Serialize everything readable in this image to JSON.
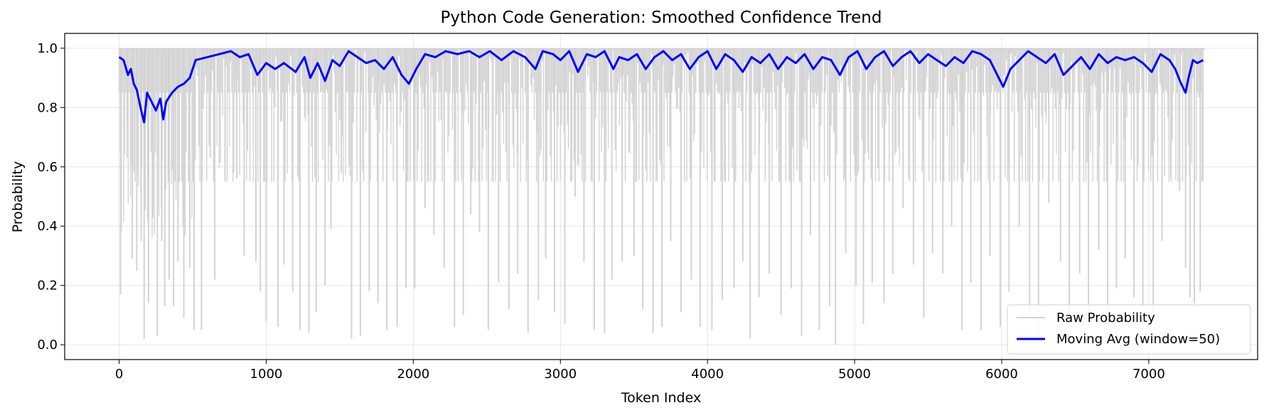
{
  "chart_data": {
    "type": "line",
    "title": "Python Code Generation: Smoothed Confidence Trend",
    "xlabel": "Token Index",
    "ylabel": "Probability",
    "xlim": [
      -370,
      7740
    ],
    "ylim": [
      -0.05,
      1.05
    ],
    "x_ticks": [
      0,
      1000,
      2000,
      3000,
      4000,
      5000,
      6000,
      7000
    ],
    "y_ticks": [
      0.0,
      0.2,
      0.4,
      0.6,
      0.8,
      1.0
    ],
    "x_tick_labels": [
      "0",
      "1000",
      "2000",
      "3000",
      "4000",
      "5000",
      "6000",
      "7000"
    ],
    "y_tick_labels": [
      "0.0",
      "0.2",
      "0.4",
      "0.6",
      "0.8",
      "1.0"
    ],
    "grid": true,
    "legend_position": "lower-right",
    "colors": {
      "raw": "#d3d3d3",
      "moving_avg": "#0000ff"
    },
    "series": [
      {
        "name": "Raw Probability",
        "style": "spiky series ranging from about 0.0 to 1.0, dense dips below 1.0",
        "n_points": 7380,
        "approx_dips": [
          [
            10,
            0.17
          ],
          [
            60,
            0.74
          ],
          [
            90,
            0.29
          ],
          [
            120,
            0.25
          ],
          [
            150,
            0.35
          ],
          [
            170,
            0.02
          ],
          [
            200,
            0.14
          ],
          [
            230,
            0.43
          ],
          [
            260,
            0.03
          ],
          [
            290,
            0.35
          ],
          [
            310,
            0.13
          ],
          [
            340,
            0.22
          ],
          [
            370,
            0.13
          ],
          [
            400,
            0.28
          ],
          [
            440,
            0.09
          ],
          [
            480,
            0.26
          ],
          [
            510,
            0.05
          ],
          [
            560,
            0.05
          ],
          [
            620,
            0.63
          ],
          [
            650,
            0.22
          ],
          [
            720,
            0.55
          ],
          [
            800,
            0.56
          ],
          [
            850,
            0.3
          ],
          [
            930,
            0.28
          ],
          [
            960,
            0.18
          ],
          [
            1000,
            0.08
          ],
          [
            1080,
            0.06
          ],
          [
            1120,
            0.27
          ],
          [
            1180,
            0.18
          ],
          [
            1230,
            0.05
          ],
          [
            1290,
            0.04
          ],
          [
            1340,
            0.11
          ],
          [
            1400,
            0.2
          ],
          [
            1440,
            0.39
          ],
          [
            1510,
            0.58
          ],
          [
            1580,
            0.02
          ],
          [
            1640,
            0.03
          ],
          [
            1700,
            0.18
          ],
          [
            1760,
            0.14
          ],
          [
            1820,
            0.05
          ],
          [
            1890,
            0.06
          ],
          [
            1950,
            0.19
          ],
          [
            2010,
            0.19
          ],
          [
            2080,
            0.46
          ],
          [
            2140,
            0.37
          ],
          [
            2210,
            0.26
          ],
          [
            2280,
            0.06
          ],
          [
            2340,
            0.1
          ],
          [
            2390,
            0.44
          ],
          [
            2450,
            0.38
          ],
          [
            2510,
            0.05
          ],
          [
            2580,
            0.21
          ],
          [
            2650,
            0.12
          ],
          [
            2710,
            0.24
          ],
          [
            2780,
            0.04
          ],
          [
            2850,
            0.15
          ],
          [
            2900,
            0.29
          ],
          [
            2960,
            0.11
          ],
          [
            3030,
            0.07
          ],
          [
            3100,
            0.5
          ],
          [
            3160,
            0.28
          ],
          [
            3230,
            0.05
          ],
          [
            3300,
            0.04
          ],
          [
            3350,
            0.22
          ],
          [
            3420,
            0.28
          ],
          [
            3500,
            0.3
          ],
          [
            3560,
            0.12
          ],
          [
            3630,
            0.04
          ],
          [
            3690,
            0.06
          ],
          [
            3750,
            0.35
          ],
          [
            3820,
            0.11
          ],
          [
            3890,
            0.22
          ],
          [
            3950,
            0.06
          ],
          [
            4030,
            0.05
          ],
          [
            4100,
            0.15
          ],
          [
            4180,
            0.19
          ],
          [
            4240,
            0.28
          ],
          [
            4290,
            0.02
          ],
          [
            4350,
            0.16
          ],
          [
            4420,
            0.24
          ],
          [
            4500,
            0.1
          ],
          [
            4570,
            0.19
          ],
          [
            4640,
            0.03
          ],
          [
            4700,
            0.37
          ],
          [
            4760,
            0.05
          ],
          [
            4830,
            0.13
          ],
          [
            4870,
            0.0
          ],
          [
            4940,
            0.31
          ],
          [
            5010,
            0.2
          ],
          [
            5060,
            0.07
          ],
          [
            5120,
            0.21
          ],
          [
            5200,
            0.14
          ],
          [
            5260,
            0.24
          ],
          [
            5330,
            0.46
          ],
          [
            5400,
            0.27
          ],
          [
            5470,
            0.09
          ],
          [
            5530,
            0.31
          ],
          [
            5600,
            0.24
          ],
          [
            5660,
            0.4
          ],
          [
            5730,
            0.05
          ],
          [
            5790,
            0.21
          ],
          [
            5860,
            0.05
          ],
          [
            5920,
            0.3
          ],
          [
            5990,
            0.06
          ],
          [
            6050,
            0.18
          ],
          [
            6120,
            0.4
          ],
          [
            6190,
            0.08
          ],
          [
            6250,
            0.03
          ],
          [
            6320,
            0.48
          ],
          [
            6400,
            0.28
          ],
          [
            6460,
            0.08
          ],
          [
            6530,
            0.24
          ],
          [
            6590,
            0.1
          ],
          [
            6660,
            0.32
          ],
          [
            6720,
            0.08
          ],
          [
            6780,
            0.19
          ],
          [
            6840,
            0.29
          ],
          [
            6900,
            0.16
          ],
          [
            6960,
            0.13
          ],
          [
            7030,
            0.11
          ],
          [
            7090,
            0.35
          ],
          [
            7150,
            0.56
          ],
          [
            7210,
            0.52
          ],
          [
            7250,
            0.26
          ],
          [
            7280,
            0.16
          ],
          [
            7310,
            0.14
          ],
          [
            7350,
            0.18
          ]
        ]
      },
      {
        "name": "Moving Avg (window=50)",
        "x": [
          0,
          30,
          60,
          80,
          100,
          120,
          150,
          170,
          190,
          220,
          250,
          280,
          300,
          320,
          360,
          400,
          440,
          480,
          520,
          600,
          680,
          760,
          820,
          880,
          940,
          1000,
          1060,
          1120,
          1200,
          1260,
          1300,
          1350,
          1400,
          1450,
          1500,
          1560,
          1620,
          1680,
          1740,
          1800,
          1860,
          1920,
          1970,
          2020,
          2080,
          2150,
          2220,
          2300,
          2380,
          2450,
          2520,
          2600,
          2680,
          2760,
          2830,
          2880,
          2950,
          3000,
          3060,
          3120,
          3180,
          3240,
          3300,
          3360,
          3400,
          3460,
          3520,
          3580,
          3640,
          3700,
          3760,
          3820,
          3880,
          3940,
          4000,
          4060,
          4120,
          4180,
          4240,
          4300,
          4360,
          4420,
          4480,
          4540,
          4600,
          4660,
          4720,
          4780,
          4840,
          4900,
          4960,
          5020,
          5080,
          5140,
          5200,
          5260,
          5320,
          5380,
          5440,
          5500,
          5560,
          5620,
          5680,
          5740,
          5800,
          5860,
          5920,
          5980,
          6010,
          6060,
          6120,
          6180,
          6240,
          6300,
          6360,
          6420,
          6480,
          6540,
          6600,
          6660,
          6720,
          6780,
          6840,
          6900,
          6960,
          7020,
          7080,
          7140,
          7180,
          7220,
          7250,
          7270,
          7300,
          7330,
          7370
        ],
        "y": [
          0.97,
          0.96,
          0.91,
          0.93,
          0.88,
          0.86,
          0.79,
          0.75,
          0.85,
          0.82,
          0.79,
          0.83,
          0.76,
          0.82,
          0.85,
          0.87,
          0.88,
          0.9,
          0.96,
          0.97,
          0.98,
          0.99,
          0.97,
          0.98,
          0.91,
          0.95,
          0.93,
          0.95,
          0.92,
          0.97,
          0.9,
          0.95,
          0.89,
          0.96,
          0.94,
          0.99,
          0.97,
          0.95,
          0.96,
          0.93,
          0.97,
          0.91,
          0.88,
          0.93,
          0.98,
          0.97,
          0.99,
          0.98,
          0.99,
          0.97,
          0.99,
          0.96,
          0.99,
          0.97,
          0.93,
          0.99,
          0.98,
          0.96,
          0.99,
          0.92,
          0.98,
          0.97,
          0.99,
          0.93,
          0.97,
          0.96,
          0.98,
          0.93,
          0.97,
          0.99,
          0.96,
          0.98,
          0.93,
          0.97,
          0.99,
          0.93,
          0.98,
          0.96,
          0.92,
          0.97,
          0.95,
          0.98,
          0.93,
          0.97,
          0.95,
          0.98,
          0.93,
          0.97,
          0.96,
          0.91,
          0.97,
          0.99,
          0.93,
          0.97,
          0.99,
          0.94,
          0.97,
          0.99,
          0.95,
          0.98,
          0.96,
          0.94,
          0.97,
          0.95,
          0.99,
          0.98,
          0.96,
          0.9,
          0.87,
          0.93,
          0.96,
          0.99,
          0.97,
          0.95,
          0.98,
          0.91,
          0.94,
          0.97,
          0.93,
          0.98,
          0.95,
          0.97,
          0.96,
          0.97,
          0.95,
          0.92,
          0.98,
          0.96,
          0.93,
          0.88,
          0.85,
          0.9,
          0.96,
          0.95,
          0.96
        ]
      }
    ]
  }
}
